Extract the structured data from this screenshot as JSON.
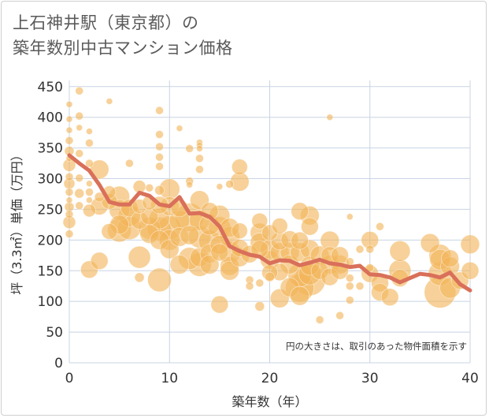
{
  "title_line1": "上石神井駅（東京都）の",
  "title_line2": "築年数別中古マンション価格",
  "colors": {
    "bubble": "#f2b45a",
    "line": "#d9705a",
    "grid": "#c8d4e3",
    "text": "#333333",
    "plot_bg": "#ffffff"
  },
  "chart_data": {
    "type": "scatter",
    "title": "上石神井駅（東京都）の 築年数別中古マンション価格",
    "xlabel": "築年数（年）",
    "ylabel": "坪（3.3㎡）単価（万円）",
    "xlim": [
      0,
      40
    ],
    "ylim": [
      0,
      460
    ],
    "xticks": [
      0,
      10,
      20,
      30,
      40
    ],
    "yticks": [
      0,
      50,
      100,
      150,
      200,
      250,
      300,
      350,
      400,
      450
    ],
    "grid": true,
    "note": "円の大きさは、取引のあった物件面積を示す",
    "bubble_series": {
      "points": [
        [
          0,
          421,
          4
        ],
        [
          0,
          397,
          4
        ],
        [
          0,
          379,
          4
        ],
        [
          0,
          362,
          5
        ],
        [
          0,
          345,
          6
        ],
        [
          0,
          333,
          4
        ],
        [
          0,
          322,
          8
        ],
        [
          0,
          303,
          5
        ],
        [
          0,
          292,
          7
        ],
        [
          0,
          278,
          5
        ],
        [
          0,
          265,
          4
        ],
        [
          0,
          254,
          6
        ],
        [
          0,
          242,
          5
        ],
        [
          0,
          229,
          8
        ],
        [
          0,
          210,
          5
        ],
        [
          1,
          443,
          5
        ],
        [
          1,
          402,
          5
        ],
        [
          1,
          383,
          4
        ],
        [
          1,
          341,
          5
        ],
        [
          1,
          301,
          5
        ],
        [
          1,
          276,
          6
        ],
        [
          1,
          256,
          5
        ],
        [
          2,
          377,
          4
        ],
        [
          2,
          358,
          5
        ],
        [
          2,
          325,
          5
        ],
        [
          2,
          292,
          4
        ],
        [
          2,
          278,
          5
        ],
        [
          2,
          265,
          4
        ],
        [
          2,
          248,
          8
        ],
        [
          2,
          152,
          11
        ],
        [
          3,
          315,
          12
        ],
        [
          3,
          270,
          6
        ],
        [
          3,
          255,
          11
        ],
        [
          3,
          166,
          11
        ],
        [
          4,
          426,
          4
        ],
        [
          4,
          278,
          8
        ],
        [
          4,
          263,
          10
        ],
        [
          4,
          214,
          10
        ],
        [
          5,
          271,
          13
        ],
        [
          5,
          249,
          13
        ],
        [
          5,
          225,
          12
        ],
        [
          5,
          216,
          15
        ],
        [
          6,
          325,
          5
        ],
        [
          6,
          252,
          11
        ],
        [
          6,
          240,
          14
        ],
        [
          6,
          220,
          15
        ],
        [
          7,
          287,
          8
        ],
        [
          7,
          255,
          9
        ],
        [
          7,
          232,
          11
        ],
        [
          7,
          172,
          14
        ],
        [
          7,
          139,
          6
        ],
        [
          8,
          285,
          5
        ],
        [
          8,
          261,
          9
        ],
        [
          8,
          239,
          11
        ],
        [
          8,
          219,
          14
        ],
        [
          8,
          210,
          12
        ],
        [
          9,
          411,
          5
        ],
        [
          9,
          372,
          5
        ],
        [
          9,
          352,
          5
        ],
        [
          9,
          335,
          5
        ],
        [
          9,
          320,
          5
        ],
        [
          9,
          281,
          6
        ],
        [
          9,
          257,
          11
        ],
        [
          9,
          235,
          13
        ],
        [
          9,
          218,
          15
        ],
        [
          9,
          200,
          12
        ],
        [
          9,
          135,
          15
        ],
        [
          10,
          283,
          13
        ],
        [
          10,
          255,
          12
        ],
        [
          10,
          220,
          15
        ],
        [
          10,
          200,
          13
        ],
        [
          10,
          185,
          12
        ],
        [
          11,
          382,
          4
        ],
        [
          11,
          252,
          11
        ],
        [
          11,
          232,
          13
        ],
        [
          11,
          205,
          12
        ],
        [
          11,
          160,
          12
        ],
        [
          12,
          349,
          5
        ],
        [
          12,
          296,
          5
        ],
        [
          12,
          290,
          4
        ],
        [
          12,
          237,
          18
        ],
        [
          12,
          208,
          12
        ],
        [
          12,
          170,
          14
        ],
        [
          13,
          359,
          4
        ],
        [
          13,
          354,
          4
        ],
        [
          13,
          349,
          4
        ],
        [
          13,
          333,
          5
        ],
        [
          13,
          315,
          5
        ],
        [
          13,
          265,
          12
        ],
        [
          13,
          232,
          13
        ],
        [
          13,
          205,
          14
        ],
        [
          13,
          172,
          12
        ],
        [
          13,
          160,
          15
        ],
        [
          14,
          247,
          11
        ],
        [
          14,
          225,
          13
        ],
        [
          14,
          198,
          14
        ],
        [
          14,
          178,
          12
        ],
        [
          14,
          160,
          12
        ],
        [
          15,
          287,
          4
        ],
        [
          15,
          240,
          13
        ],
        [
          15,
          220,
          14
        ],
        [
          15,
          192,
          12
        ],
        [
          15,
          180,
          11
        ],
        [
          15,
          95,
          11
        ],
        [
          16,
          291,
          5
        ],
        [
          16,
          220,
          12
        ],
        [
          16,
          205,
          13
        ],
        [
          16,
          180,
          14
        ],
        [
          16,
          158,
          12
        ],
        [
          16,
          150,
          12
        ],
        [
          17,
          319,
          10
        ],
        [
          17,
          295,
          12
        ],
        [
          17,
          215,
          10
        ],
        [
          17,
          187,
          11
        ],
        [
          17,
          172,
          12
        ],
        [
          18,
          177,
          11
        ],
        [
          18,
          135,
          5
        ],
        [
          18,
          125,
          5
        ],
        [
          19,
          231,
          10
        ],
        [
          19,
          212,
          12
        ],
        [
          19,
          196,
          12
        ],
        [
          19,
          185,
          11
        ],
        [
          19,
          130,
          5
        ],
        [
          19,
          92,
          6
        ],
        [
          20,
          212,
          10
        ],
        [
          20,
          185,
          12
        ],
        [
          20,
          168,
          12
        ],
        [
          20,
          147,
          10
        ],
        [
          20,
          140,
          6
        ],
        [
          21,
          223,
          10
        ],
        [
          21,
          198,
          11
        ],
        [
          21,
          180,
          12
        ],
        [
          21,
          148,
          11
        ],
        [
          21,
          105,
          12
        ],
        [
          22,
          201,
          11
        ],
        [
          22,
          180,
          12
        ],
        [
          22,
          160,
          12
        ],
        [
          22,
          123,
          12
        ],
        [
          23,
          247,
          11
        ],
        [
          23,
          199,
          11
        ],
        [
          23,
          180,
          12
        ],
        [
          23,
          143,
          15
        ],
        [
          23,
          122,
          18
        ],
        [
          23,
          109,
          12
        ],
        [
          24,
          240,
          12
        ],
        [
          24,
          222,
          11
        ],
        [
          24,
          185,
          12
        ],
        [
          24,
          158,
          12
        ],
        [
          24,
          145,
          14
        ],
        [
          24,
          135,
          20
        ],
        [
          25,
          175,
          12
        ],
        [
          25,
          150,
          11
        ],
        [
          25,
          70,
          5
        ],
        [
          26,
          400,
          4
        ],
        [
          26,
          199,
          12
        ],
        [
          26,
          175,
          11
        ],
        [
          26,
          160,
          12
        ],
        [
          26,
          140,
          11
        ],
        [
          27,
          175,
          11
        ],
        [
          27,
          160,
          12
        ],
        [
          27,
          150,
          11
        ],
        [
          27,
          77,
          5
        ],
        [
          28,
          238,
          4
        ],
        [
          28,
          165,
          5
        ],
        [
          28,
          138,
          5
        ],
        [
          28,
          125,
          5
        ],
        [
          28,
          102,
          5
        ],
        [
          29,
          185,
          5
        ],
        [
          29,
          125,
          5
        ],
        [
          30,
          200,
          11
        ],
        [
          30,
          185,
          5
        ],
        [
          30,
          155,
          5
        ],
        [
          30,
          145,
          11
        ],
        [
          31,
          222,
          5
        ],
        [
          31,
          130,
          11
        ],
        [
          31,
          115,
          11
        ],
        [
          32,
          107,
          11
        ],
        [
          33,
          182,
          13
        ],
        [
          33,
          150,
          14
        ],
        [
          33,
          138,
          11
        ],
        [
          36,
          195,
          12
        ],
        [
          37,
          175,
          14
        ],
        [
          37,
          168,
          13
        ],
        [
          37,
          145,
          15
        ],
        [
          37,
          115,
          20
        ],
        [
          38,
          170,
          11
        ],
        [
          38,
          157,
          12
        ],
        [
          38,
          122,
          13
        ],
        [
          39,
          134,
          11
        ],
        [
          40,
          193,
          12
        ],
        [
          40,
          150,
          11
        ]
      ]
    },
    "line_series": {
      "x": [
        0,
        1,
        2,
        3,
        4,
        5,
        6,
        7,
        8,
        9,
        10,
        11,
        12,
        13,
        14,
        15,
        16,
        17,
        18,
        19,
        20,
        21,
        22,
        23,
        24,
        25,
        26,
        27,
        28,
        29,
        30,
        31,
        32,
        33,
        34,
        35,
        36,
        37,
        38,
        39,
        40
      ],
      "y": [
        338,
        325,
        313,
        290,
        262,
        258,
        258,
        277,
        272,
        258,
        255,
        270,
        243,
        244,
        238,
        222,
        190,
        182,
        176,
        173,
        162,
        167,
        166,
        159,
        163,
        168,
        162,
        160,
        156,
        158,
        144,
        143,
        139,
        131,
        138,
        145,
        143,
        139,
        147,
        128,
        118
      ]
    }
  }
}
